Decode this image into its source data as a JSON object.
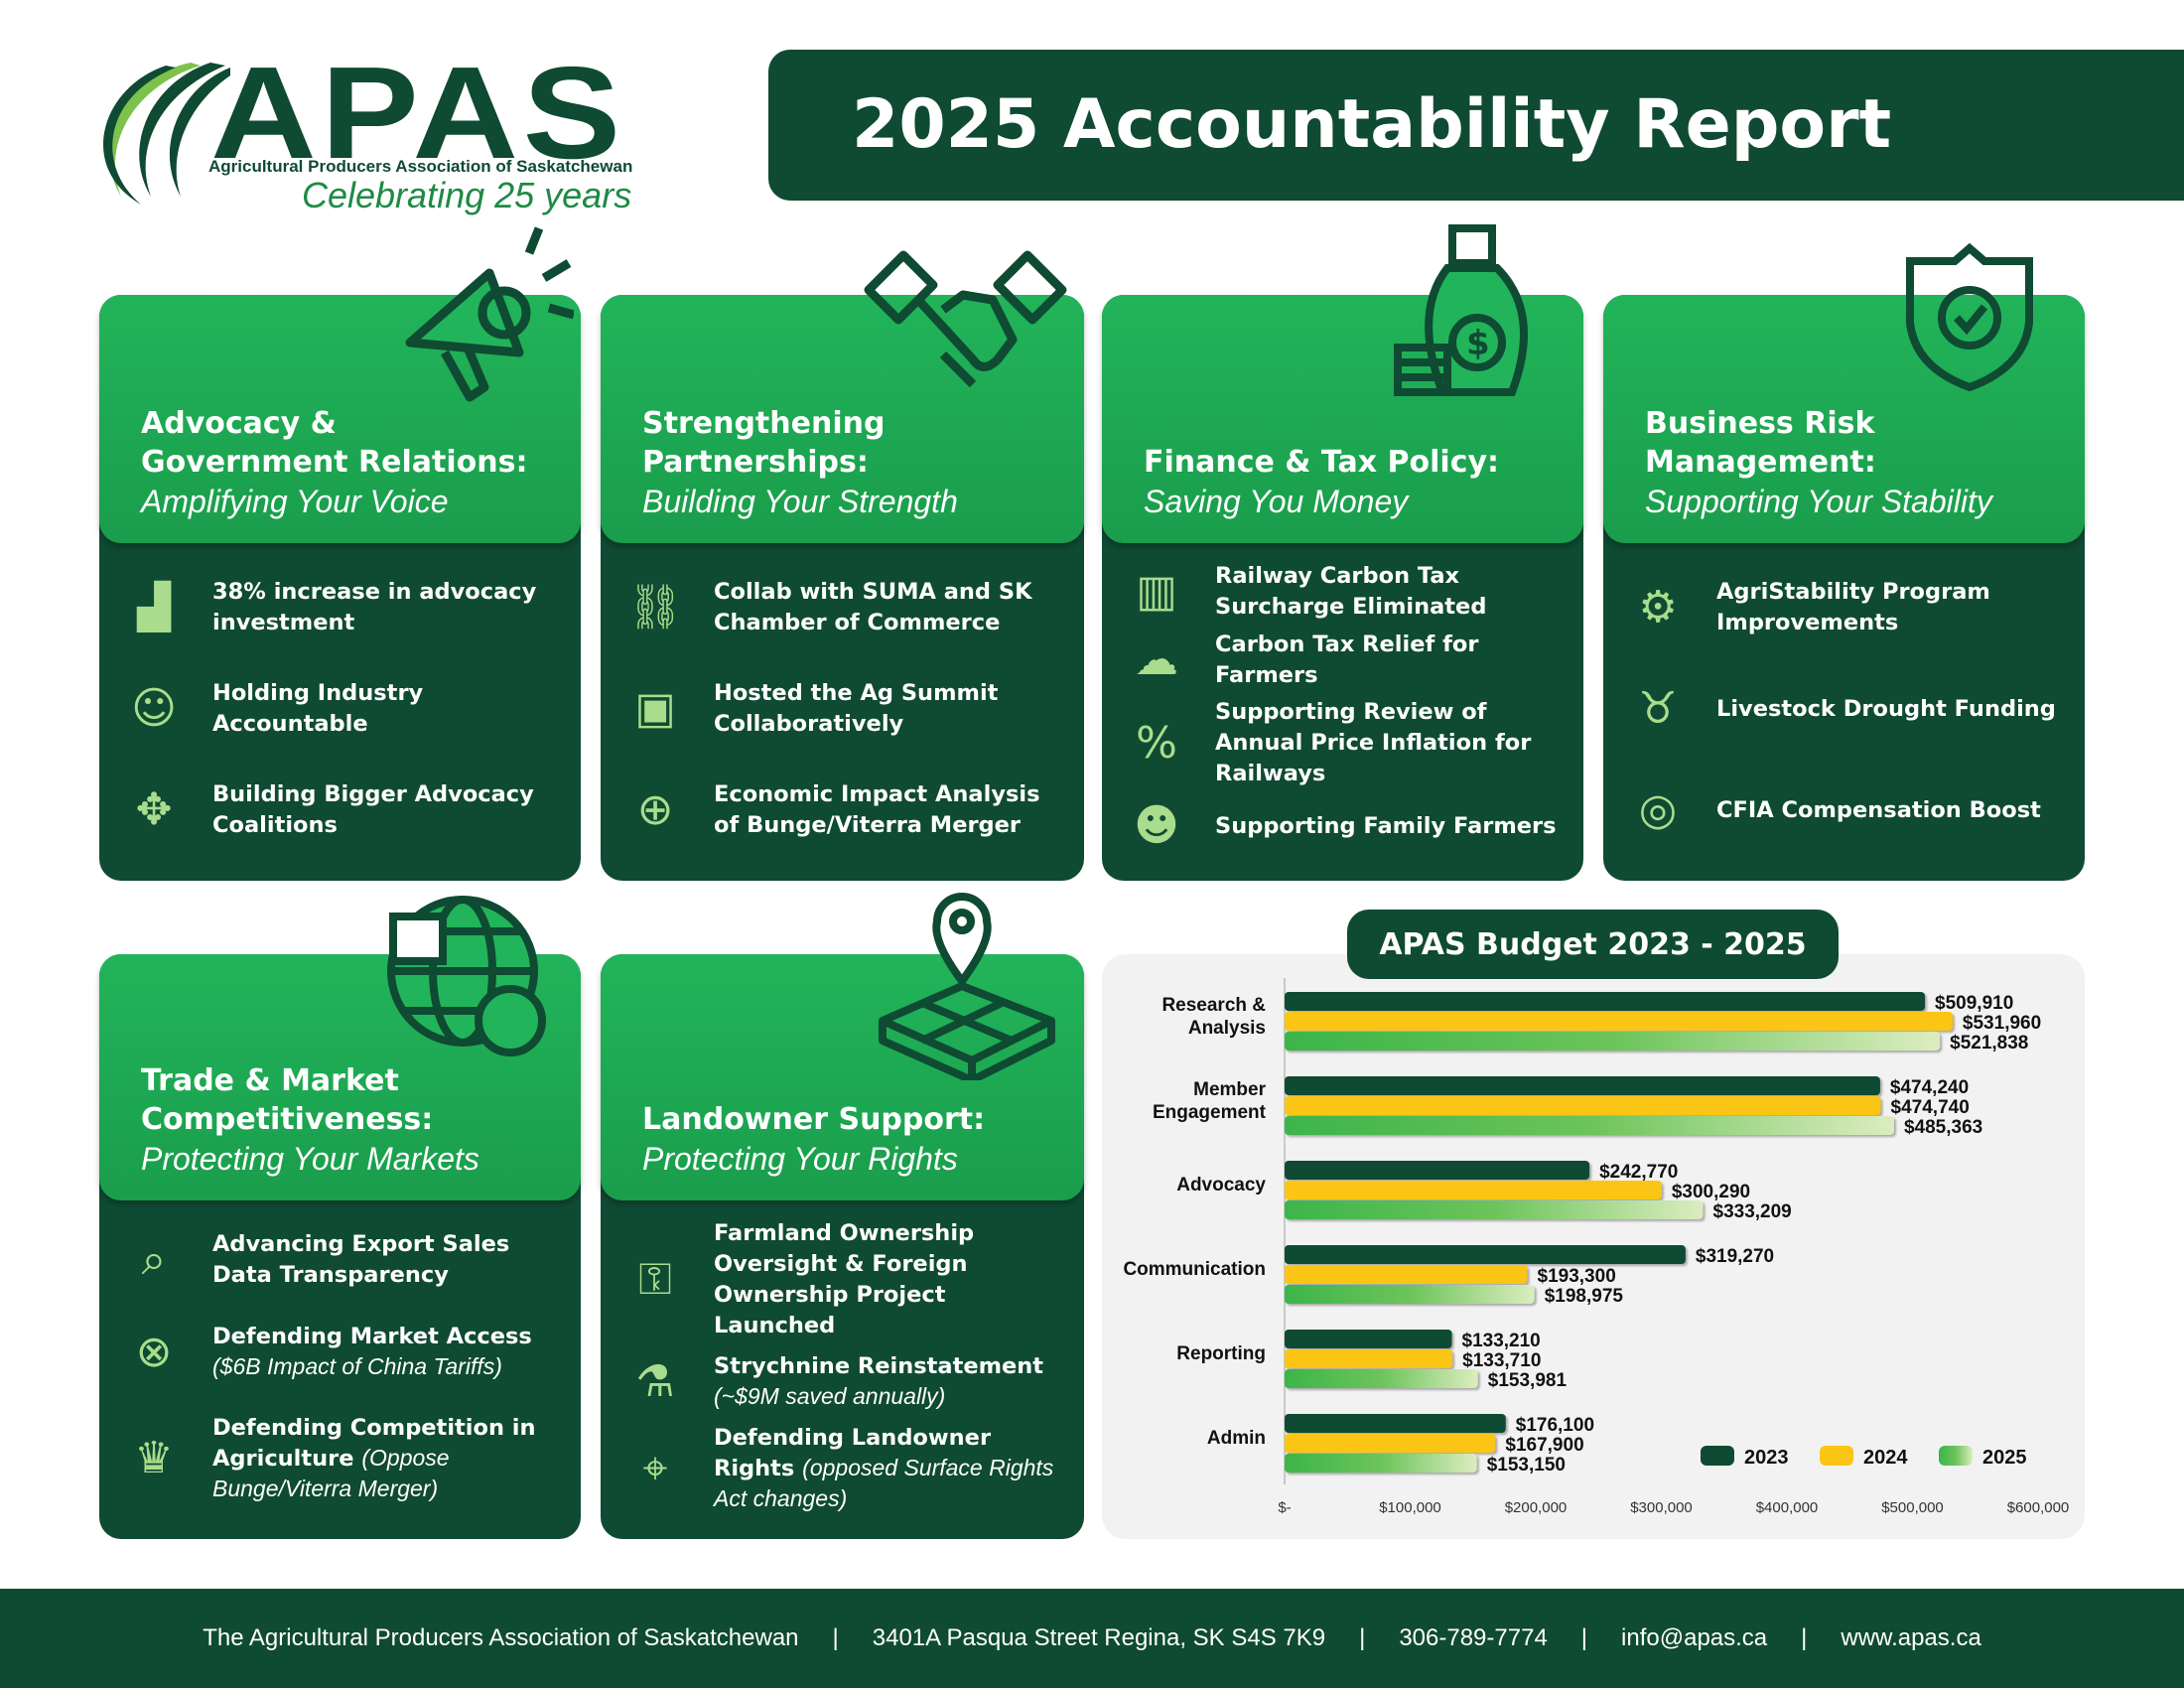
{
  "header": {
    "logo_text": "APAS",
    "logo_subtitle": "Agricultural Producers Association of Saskatchewan",
    "tagline": "Celebrating 25 years",
    "title": "2025 Accountability Report"
  },
  "cards": [
    {
      "title": "Advocacy &\nGovernment Relations:",
      "subtitle": "Amplifying Your Voice",
      "icon": "megaphone-icon",
      "items": [
        {
          "icon": "growth-chart-icon",
          "text": "38% increase in advocacy investment",
          "note": ""
        },
        {
          "icon": "people-check-icon",
          "text": "Holding Industry Accountable",
          "note": ""
        },
        {
          "icon": "coalition-hands-icon",
          "text": "Building Bigger Advocacy Coalitions",
          "note": ""
        }
      ]
    },
    {
      "title": "Strengthening\nPartnerships:",
      "subtitle": "Building Your Strength",
      "icon": "handshake-icon",
      "items": [
        {
          "icon": "link-icon",
          "text": "Collab with SUMA and SK Chamber of Commerce",
          "note": ""
        },
        {
          "icon": "summit-presentation-icon",
          "text": "Hosted the Ag Summit Collaboratively",
          "note": ""
        },
        {
          "icon": "globe-dollar-icon",
          "text": "Economic Impact Analysis of Bunge/Viterra Merger",
          "note": ""
        }
      ]
    },
    {
      "title": "Finance & Tax Policy:",
      "subtitle": "Saving You Money",
      "icon": "money-bag-icon",
      "items": [
        {
          "icon": "railway-icon",
          "text": "Railway Carbon Tax Surcharge Eliminated",
          "note": ""
        },
        {
          "icon": "co2-cloud-icon",
          "text": "Carbon Tax Relief for Farmers",
          "note": ""
        },
        {
          "icon": "inflation-percent-icon",
          "text": "Supporting Review of Annual Price Inflation for Railways",
          "note": ""
        },
        {
          "icon": "family-icon",
          "text": "Supporting Family Farmers",
          "note": ""
        }
      ]
    },
    {
      "title": "Business Risk\nManagement:",
      "subtitle": "Supporting Your Stability",
      "icon": "shield-check-icon",
      "items": [
        {
          "icon": "gear-arrows-icon",
          "text": "AgriStability Program Improvements",
          "note": ""
        },
        {
          "icon": "cow-icon",
          "text": "Livestock Drought Funding",
          "note": ""
        },
        {
          "icon": "food-safety-icon",
          "text": "CFIA Compensation Boost",
          "note": ""
        }
      ]
    },
    {
      "title": "Trade & Market\nCompetitiveness:",
      "subtitle": "Protecting Your Markets",
      "icon": "globe-chart-cart-icon",
      "items": [
        {
          "icon": "data-magnifier-icon",
          "text": "Advancing Export Sales Data Transparency",
          "note": ""
        },
        {
          "icon": "globe-lock-icon",
          "text": "Defending Market Access",
          "note": "($6B Impact of China Tariffs)"
        },
        {
          "icon": "competition-trophy-icon",
          "text": "Defending Competition in Agriculture",
          "note": "(Oppose Bunge/Viterra Merger)"
        }
      ]
    },
    {
      "title": "Landowner Support:",
      "subtitle": "Protecting Your Rights",
      "icon": "map-pin-grid-icon",
      "items": [
        {
          "icon": "key-hand-icon",
          "text": "Farmland Ownership Oversight & Foreign Ownership Project Launched",
          "note": ""
        },
        {
          "icon": "sprayer-icon",
          "text": "Strychnine Reinstatement",
          "note": "(~$9M saved annually)"
        },
        {
          "icon": "map-pin-icon",
          "text": "Defending Landowner Rights",
          "note": "(opposed Surface Rights Act changes)"
        }
      ]
    }
  ],
  "chart_data": {
    "type": "bar",
    "orientation": "horizontal",
    "title": "APAS Budget 2023 - 2025",
    "categories": [
      "Research & Analysis",
      "Member Engagement",
      "Advocacy",
      "Communication",
      "Reporting",
      "Admin"
    ],
    "series": [
      {
        "name": "2023",
        "color": "#0f4a33",
        "values": [
          509910,
          474240,
          242770,
          319270,
          133210,
          176100
        ],
        "labels": [
          "$509,910",
          "$474,240",
          "$242,770",
          "$319,270",
          "$133,210",
          "$176,100"
        ]
      },
      {
        "name": "2024",
        "color": "#fbc515",
        "values": [
          531960,
          474740,
          300290,
          193300,
          133710,
          167900
        ],
        "labels": [
          "$531,960",
          "$474,740",
          "$300,290",
          "$193,300",
          "$133,710",
          "$167,900"
        ]
      },
      {
        "name": "2025",
        "color": "#3cb54a",
        "values": [
          521838,
          485363,
          333209,
          198975,
          153981,
          153150
        ],
        "labels": [
          "$521,838",
          "$485,363",
          "$333,209",
          "$198,975",
          "$153,981",
          "$153,150"
        ]
      }
    ],
    "xlim": [
      0,
      600000
    ],
    "xticks": [
      "$-",
      "$100,000",
      "$200,000",
      "$300,000",
      "$400,000",
      "$500,000",
      "$600,000"
    ],
    "legend": "bottom-right",
    "grid": false
  },
  "footer": {
    "items": [
      "The Agricultural Producers Association of Saskatchewan",
      "3401A Pasqua Street Regina, SK S4S 7K9",
      "306-789-7774",
      "info@apas.ca",
      "www.apas.ca"
    ],
    "separator": "|"
  }
}
